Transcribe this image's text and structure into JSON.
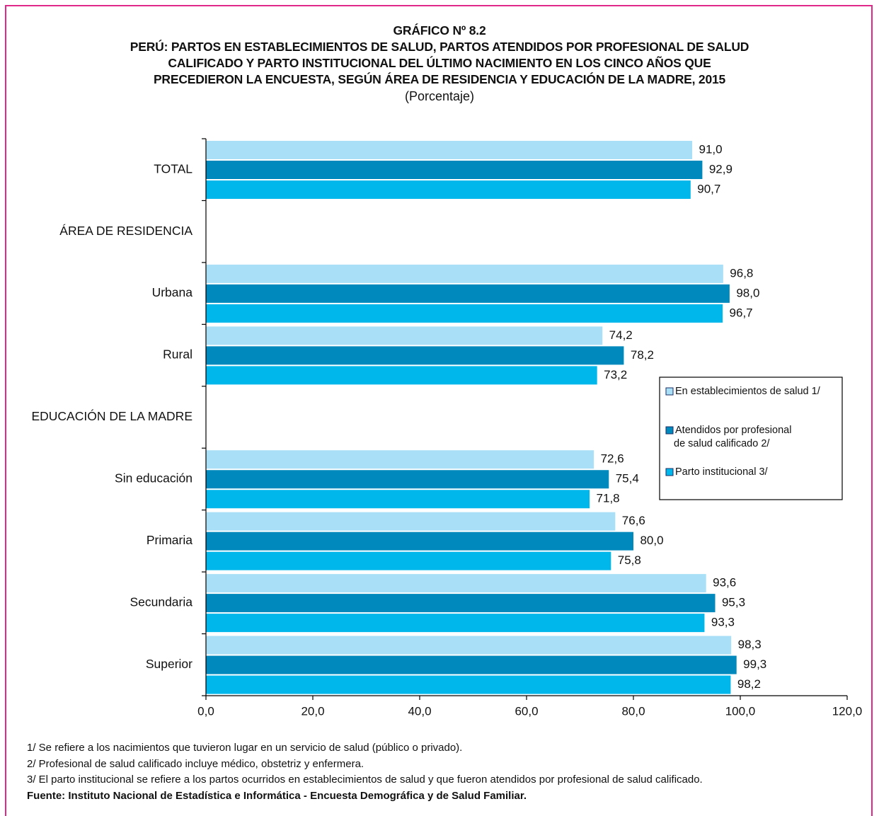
{
  "header": {
    "number": "GRÁFICO Nº 8.2",
    "title_lines": [
      "PERÚ: PARTOS EN ESTABLECIMIENTOS DE SALUD, PARTOS ATENDIDOS POR PROFESIONAL DE SALUD",
      "CALIFICADO Y PARTO INSTITUCIONAL DEL ÚLTIMO NACIMIENTO EN LOS CINCO AÑOS QUE",
      "PRECEDIERON LA ENCUESTA, SEGÚN ÁREA DE RESIDENCIA Y EDUCACIÓN DE LA MADRE, 2015"
    ],
    "subtitle": "(Porcentaje)"
  },
  "chart_data": {
    "type": "bar",
    "orientation": "horizontal",
    "categories": [
      "TOTAL",
      "ÁREA DE RESIDENCIA",
      "Urbana",
      "Rural",
      "EDUCACIÓN DE LA MADRE",
      "Sin educación",
      "Primaria",
      "Secundaria",
      "Superior"
    ],
    "series": [
      {
        "name": "En establecimientos de salud 1/",
        "color": "#a9e0f7",
        "values": [
          91.0,
          null,
          96.8,
          74.2,
          null,
          72.6,
          76.6,
          93.6,
          98.3
        ],
        "labels": [
          "91,0",
          "",
          "96,8",
          "74,2",
          "",
          "72,6",
          "76,6",
          "93,6",
          "98,3"
        ]
      },
      {
        "name": "Atendidos por profesional de salud calificado 2/",
        "color": "#0089bc",
        "values": [
          92.9,
          null,
          98.0,
          78.2,
          null,
          75.4,
          80.0,
          95.3,
          99.3
        ],
        "labels": [
          "92,9",
          "",
          "98,0",
          "78,2",
          "",
          "75,4",
          "80,0",
          "95,3",
          "99,3"
        ]
      },
      {
        "name": "Parto institucional 3/",
        "color": "#00b7eb",
        "values": [
          90.7,
          null,
          96.7,
          73.2,
          null,
          71.8,
          75.8,
          93.3,
          98.2
        ],
        "labels": [
          "90,7",
          "",
          "96,7",
          "73,2",
          "",
          "71,8",
          "75,8",
          "93,3",
          "98,2"
        ]
      }
    ],
    "legend_lines": [
      [
        "En establecimientos de salud 1/"
      ],
      [
        "Atendidos por profesional",
        "de salud calificado 2/"
      ],
      [
        "Parto institucional 3/"
      ]
    ],
    "xlim": [
      0,
      120
    ],
    "xticks": [
      0,
      20,
      40,
      60,
      80,
      100,
      120
    ],
    "xtick_labels": [
      "0,0",
      "20,0",
      "40,0",
      "60,0",
      "80,0",
      "100,0",
      "120,0"
    ],
    "grid": false,
    "legend_position": "right"
  },
  "footnotes": [
    "1/ Se refiere a los nacimientos que tuvieron lugar en un servicio de salud (público o privado).",
    "2/ Profesional de salud calificado incluye médico, obstetriz y enfermera.",
    "3/ El parto institucional se refiere a los partos ocurridos en establecimientos de salud y que fueron atendidos por profesional de  salud calificado."
  ],
  "source": "Fuente: Instituto Nacional de Estadística e Informática - Encuesta Demográfica y de Salud Familiar."
}
